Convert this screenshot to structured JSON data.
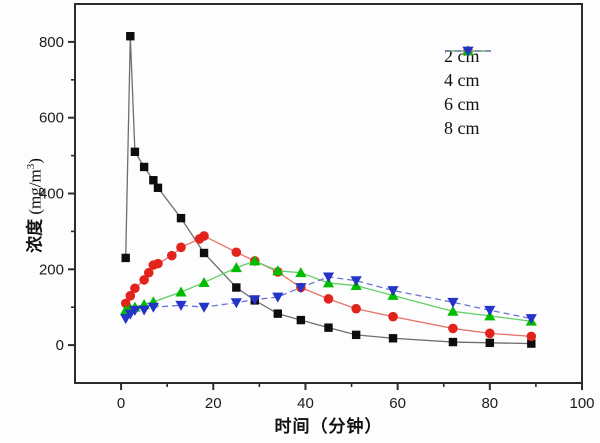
{
  "figure": {
    "background": "#fdfdfd",
    "axis_color": "#2b2b2b",
    "tick_label_color": "#1c1c1c"
  },
  "chart_data": {
    "type": "line",
    "title": "",
    "xlabel": "时间（分钟）",
    "ylabel_parts": {
      "cn": "浓度",
      "unit_prefix": " (mg/m",
      "sup": "3",
      "suffix": ")"
    },
    "xlim": [
      -10,
      100
    ],
    "ylim": [
      -100,
      900
    ],
    "x_ticks": [
      0,
      20,
      40,
      60,
      80,
      100
    ],
    "x_minor_ticks": [
      10,
      30,
      50,
      70,
      90
    ],
    "y_ticks": [
      0,
      200,
      400,
      600,
      800
    ],
    "y_minor_ticks": [
      100,
      300,
      500,
      700
    ],
    "grid": false,
    "legend_position": "top-right",
    "series": [
      {
        "name": "2 cm",
        "marker": "square",
        "color": "#0d0d0d",
        "line_color": "#6e6e6e",
        "line_style": "solid",
        "points": [
          [
            1,
            230
          ],
          [
            2,
            815
          ],
          [
            3,
            510
          ],
          [
            5,
            470
          ],
          [
            7,
            435
          ],
          [
            8,
            415
          ],
          [
            13,
            335
          ],
          [
            18,
            243
          ],
          [
            25,
            152
          ],
          [
            29,
            118
          ],
          [
            34,
            83
          ],
          [
            39,
            66
          ],
          [
            45,
            46
          ],
          [
            51,
            27
          ],
          [
            59,
            18
          ],
          [
            72,
            8
          ],
          [
            80,
            6
          ],
          [
            89,
            4
          ]
        ]
      },
      {
        "name": "4 cm",
        "marker": "circle",
        "color": "#e2231c",
        "line_color": "#e4746c",
        "line_style": "solid",
        "points": [
          [
            1,
            110
          ],
          [
            2,
            130
          ],
          [
            3,
            150
          ],
          [
            5,
            172
          ],
          [
            6,
            191
          ],
          [
            7,
            211
          ],
          [
            8,
            215
          ],
          [
            11,
            236
          ],
          [
            13,
            258
          ],
          [
            17,
            280
          ],
          [
            18,
            288
          ],
          [
            25,
            245
          ],
          [
            29,
            222
          ],
          [
            34,
            193
          ],
          [
            39,
            152
          ],
          [
            45,
            122
          ],
          [
            51,
            96
          ],
          [
            59,
            75
          ],
          [
            72,
            44
          ],
          [
            80,
            31
          ],
          [
            89,
            23
          ]
        ]
      },
      {
        "name": "6 cm",
        "marker": "triangle-up",
        "color": "#00bd00",
        "line_color": "#63ce63",
        "line_style": "solid",
        "points": [
          [
            1,
            92
          ],
          [
            2,
            96
          ],
          [
            3,
            100
          ],
          [
            5,
            107
          ],
          [
            7,
            114
          ],
          [
            13,
            140
          ],
          [
            18,
            165
          ],
          [
            25,
            204
          ],
          [
            29,
            222
          ],
          [
            34,
            196
          ],
          [
            39,
            191
          ],
          [
            45,
            164
          ],
          [
            51,
            157
          ],
          [
            59,
            131
          ],
          [
            72,
            89
          ],
          [
            80,
            77
          ],
          [
            89,
            63
          ]
        ]
      },
      {
        "name": "8 cm",
        "marker": "triangle-down",
        "color": "#2433c8",
        "line_color": "#6b74d6",
        "line_style": "dashed",
        "points": [
          [
            1,
            70
          ],
          [
            2,
            82
          ],
          [
            3,
            92
          ],
          [
            5,
            93
          ],
          [
            7,
            100
          ],
          [
            13,
            105
          ],
          [
            18,
            100
          ],
          [
            25,
            112
          ],
          [
            29,
            120
          ],
          [
            34,
            127
          ],
          [
            39,
            152
          ],
          [
            45,
            180
          ],
          [
            51,
            170
          ],
          [
            59,
            144
          ],
          [
            72,
            113
          ],
          [
            80,
            92
          ],
          [
            89,
            70
          ]
        ]
      }
    ]
  }
}
